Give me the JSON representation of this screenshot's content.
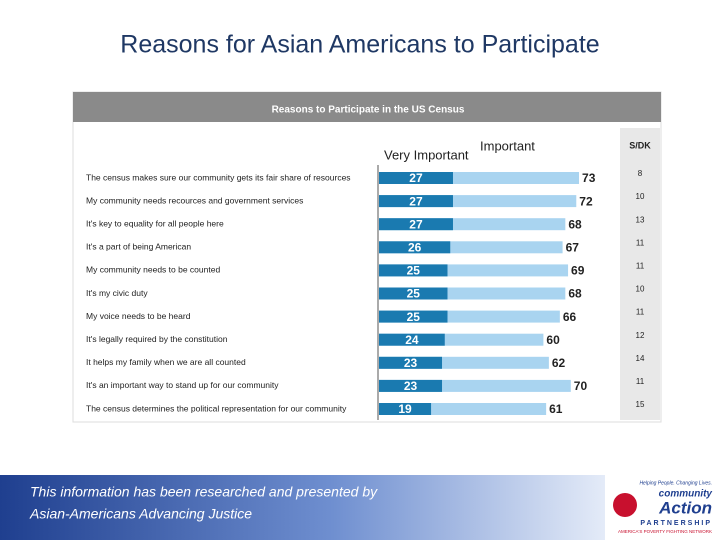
{
  "chart_data": {
    "type": "bar",
    "title": "Reasons for Asian Americans to Participate",
    "subtitle": "Reasons to Participate in the US Census",
    "categories": [
      "The census makes sure our community gets its fair share of resources",
      "My community needs recources and government services",
      "It's key to equality for all people here",
      "It's a part of being American",
      "My community needs to be counted",
      "It's my civic duty",
      "My voice needs to be heard",
      "It's legally required by the constitution",
      "It helps my family when we are all counted",
      "It's an important way to stand up for our community",
      "The census determines the political representation for our community"
    ],
    "series": [
      {
        "name": "Very Important",
        "color": "#1a7ab0",
        "values": [
          27,
          27,
          27,
          26,
          25,
          25,
          25,
          24,
          23,
          23,
          19
        ]
      },
      {
        "name": "Important",
        "color": "#a9d4f0",
        "values": [
          73,
          72,
          68,
          67,
          69,
          68,
          66,
          60,
          62,
          70,
          61
        ]
      }
    ],
    "dk_header": "S/DK",
    "dk_values": [
      8,
      10,
      13,
      11,
      11,
      10,
      11,
      12,
      14,
      11,
      15
    ],
    "footer": [
      "This information has been researched and presented by",
      "Asian-Americans Advancing Justice"
    ],
    "logo": {
      "tagline": "Helping People. Changing Lives.",
      "line1": "community",
      "line2": "Action",
      "line3": "PARTNERSHIP",
      "line4": "AMERICA'S POVERTY FIGHTING NETWORK"
    }
  }
}
